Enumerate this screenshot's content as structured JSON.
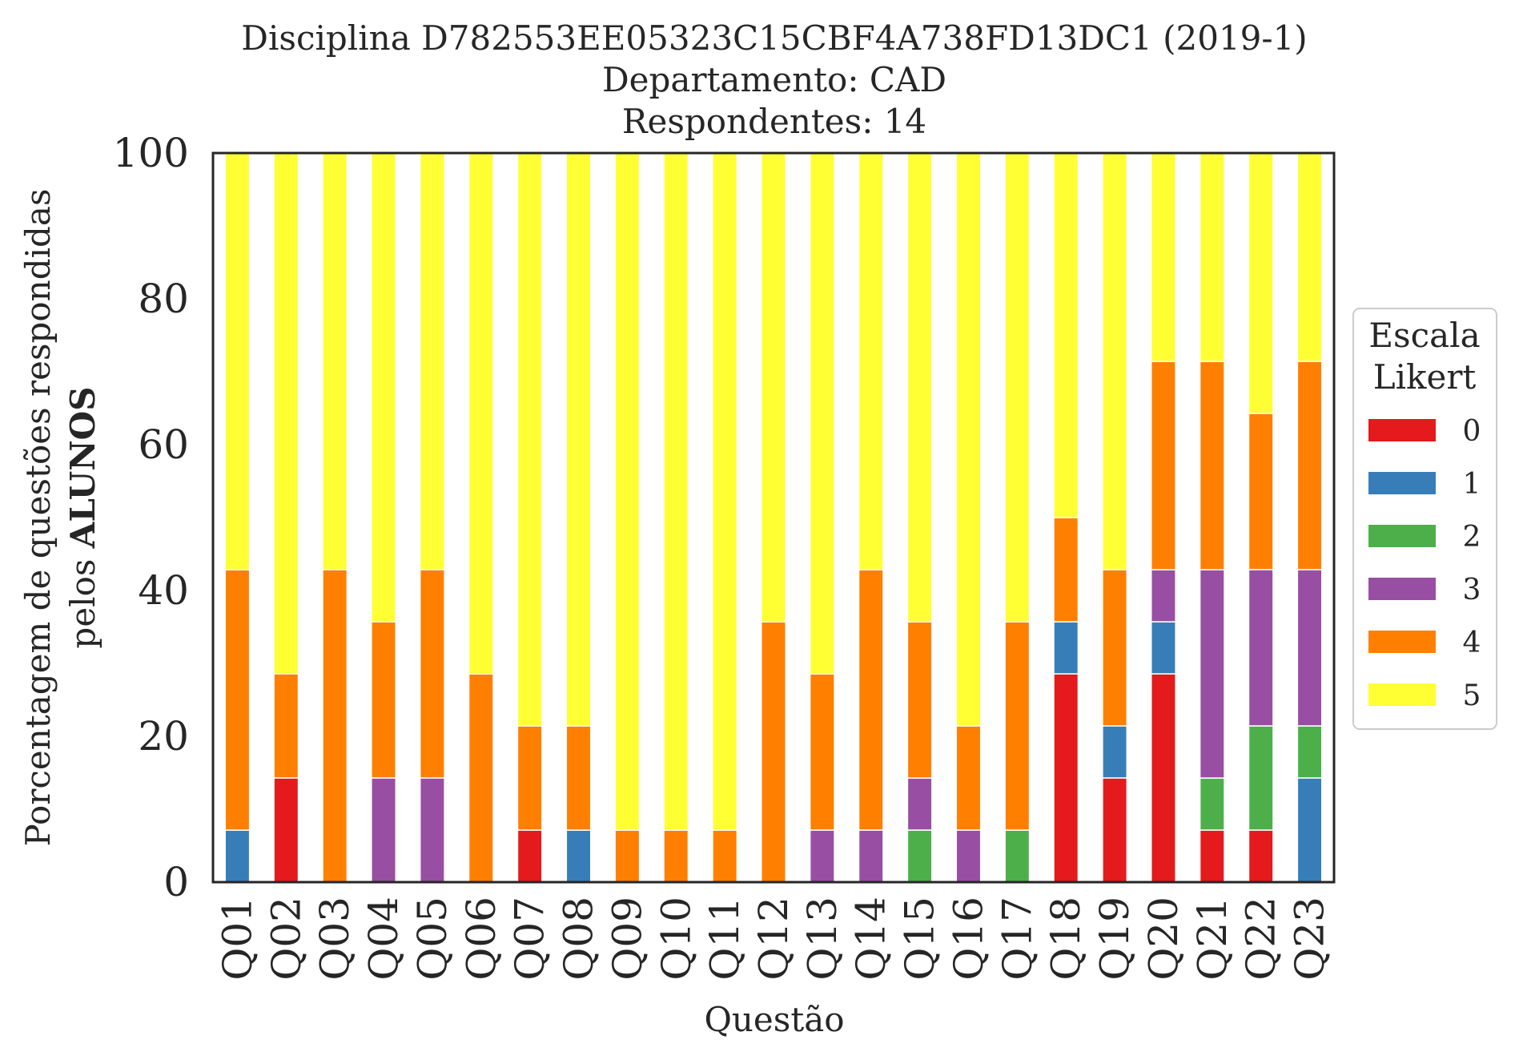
{
  "chart_data": {
    "type": "bar",
    "stacked": true,
    "title_lines": [
      "Disciplina D782553EE05323C15CBF4A738FD13DC1 (2019-1)",
      "Departamento: CAD",
      "Respondentes: 14"
    ],
    "xlabel": "Questão",
    "ylabel_line1": "Porcentagem de questões respondidas",
    "ylabel_line2_prefix": "pelos ",
    "ylabel_line2_bold": "ALUNOS",
    "ylim": [
      0,
      100
    ],
    "yticks": [
      "0",
      "20",
      "40",
      "60",
      "80",
      "100"
    ],
    "grid": false,
    "legend_placement": "right",
    "legend_title_lines": [
      "Escala",
      "Likert"
    ],
    "categories": [
      "Q01",
      "Q02",
      "Q03",
      "Q04",
      "Q05",
      "Q06",
      "Q07",
      "Q08",
      "Q09",
      "Q10",
      "Q11",
      "Q12",
      "Q13",
      "Q14",
      "Q15",
      "Q16",
      "Q17",
      "Q18",
      "Q19",
      "Q20",
      "Q21",
      "Q22",
      "Q23"
    ],
    "series": [
      {
        "name": "0",
        "color": "#e41a1c",
        "values": [
          0,
          14.29,
          0,
          0,
          0,
          0,
          7.14,
          0,
          0,
          0,
          0,
          0,
          0,
          0,
          0,
          0,
          0,
          28.57,
          14.29,
          28.57,
          7.14,
          7.14,
          0
        ]
      },
      {
        "name": "1",
        "color": "#377eb8",
        "values": [
          7.14,
          0,
          0,
          0,
          0,
          0,
          0,
          7.14,
          0,
          0,
          0,
          0,
          0,
          0,
          0,
          0,
          0,
          7.14,
          7.14,
          7.14,
          0,
          0,
          14.29
        ]
      },
      {
        "name": "2",
        "color": "#4daf4a",
        "values": [
          0,
          0,
          0,
          0,
          0,
          0,
          0,
          0,
          0,
          0,
          0,
          0,
          0,
          0,
          7.14,
          0,
          7.14,
          0,
          0,
          0,
          7.14,
          14.29,
          7.14
        ]
      },
      {
        "name": "3",
        "color": "#984ea3",
        "values": [
          0,
          0,
          0,
          14.29,
          14.29,
          0,
          0,
          0,
          0,
          0,
          0,
          0,
          7.14,
          7.14,
          7.14,
          7.14,
          0,
          0,
          0,
          7.14,
          28.57,
          21.43,
          21.43
        ]
      },
      {
        "name": "4",
        "color": "#ff7f00",
        "values": [
          35.71,
          14.29,
          42.86,
          21.43,
          28.57,
          28.57,
          14.29,
          14.29,
          7.14,
          7.14,
          7.14,
          35.71,
          21.43,
          35.71,
          21.43,
          14.29,
          28.57,
          14.29,
          21.43,
          28.57,
          28.57,
          21.43,
          28.57
        ]
      },
      {
        "name": "5",
        "color": "#ffff33",
        "values": [
          57.14,
          71.43,
          57.14,
          64.29,
          57.14,
          71.43,
          78.57,
          78.57,
          92.86,
          92.86,
          92.86,
          64.29,
          71.43,
          57.14,
          64.29,
          78.57,
          64.29,
          50.0,
          57.14,
          28.57,
          28.57,
          35.71,
          28.57
        ]
      }
    ]
  }
}
